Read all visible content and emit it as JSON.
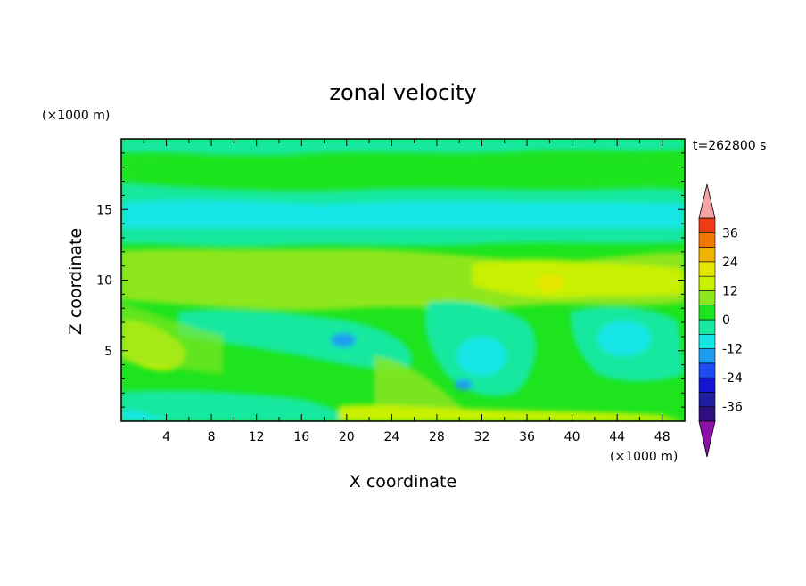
{
  "chart_data": {
    "type": "heatmap",
    "title": "zonal velocity",
    "xlabel": "X coordinate",
    "ylabel": "Z coordinate",
    "x_unit": "(×1000 m)",
    "y_unit": "(×1000 m)",
    "time_label": "t=262800 s",
    "xlim": [
      0,
      50
    ],
    "ylim": [
      0,
      20
    ],
    "x_ticks": [
      4,
      8,
      12,
      16,
      20,
      24,
      28,
      32,
      36,
      40,
      44,
      48
    ],
    "y_ticks": [
      5,
      10,
      15
    ],
    "colorbar": {
      "levels": [
        -42,
        -36,
        -30,
        -24,
        -18,
        -12,
        -6,
        0,
        6,
        12,
        18,
        24,
        30,
        36,
        42
      ],
      "tick_labels": [
        "36",
        "24",
        "12",
        "0",
        "-12",
        "-24",
        "-36"
      ],
      "tick_values": [
        36,
        24,
        12,
        0,
        -12,
        -24,
        -36
      ],
      "colors": [
        "#2f0f7f",
        "#1e1e9e",
        "#1414d2",
        "#1c4cf2",
        "#1e9ef0",
        "#14e6e6",
        "#18e8a0",
        "#1ee41e",
        "#8ee61e",
        "#c8f000",
        "#e6e600",
        "#f0b400",
        "#f07800",
        "#f03c14",
        "#e61414"
      ],
      "under_color": "#8c10a8",
      "over_color": "#f5a3a3"
    },
    "bands": [
      {
        "z_range": [
          0,
          1
        ],
        "approx_value": -3
      },
      {
        "z_range": [
          1,
          8
        ],
        "approx_value": 2
      },
      {
        "z_range": [
          8,
          12
        ],
        "approx_value": 8
      },
      {
        "z_range": [
          12,
          13
        ],
        "approx_value": 2
      },
      {
        "z_range": [
          13,
          16
        ],
        "approx_value": -8
      },
      {
        "z_range": [
          16,
          19
        ],
        "approx_value": 2
      },
      {
        "z_range": [
          19,
          20
        ],
        "approx_value": -4
      }
    ]
  }
}
